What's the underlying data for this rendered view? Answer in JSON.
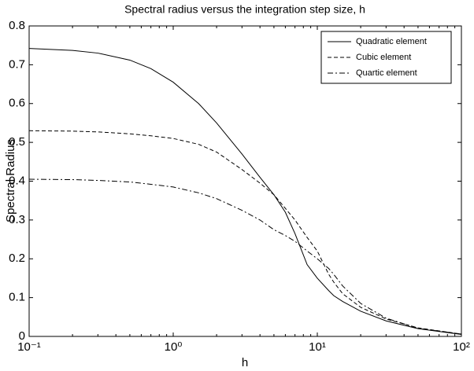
{
  "chart_data": {
    "type": "line",
    "title": "Spectral radius versus the integration step size, h",
    "x_label": "h",
    "y_label": "Spectral Radius",
    "x": [
      0.1,
      0.2,
      0.3,
      0.5,
      0.7,
      1,
      1.5,
      2,
      3,
      4,
      5,
      6,
      7,
      8.5,
      10,
      12,
      13,
      15,
      20,
      30,
      50,
      100
    ],
    "series": [
      {
        "name": "Quadratic element",
        "color": "#000000",
        "dash": "solid",
        "values": [
          0.742,
          0.737,
          0.73,
          0.712,
          0.69,
          0.655,
          0.6,
          0.55,
          0.47,
          0.41,
          0.365,
          0.32,
          0.265,
          0.185,
          0.15,
          0.118,
          0.105,
          0.09,
          0.065,
          0.04,
          0.02,
          0.005
        ]
      },
      {
        "name": "Cubic element",
        "color": "#000000",
        "dash": "dashed",
        "values": [
          0.53,
          0.529,
          0.527,
          0.522,
          0.517,
          0.51,
          0.495,
          0.475,
          0.43,
          0.395,
          0.365,
          0.33,
          0.3,
          0.255,
          0.22,
          0.16,
          0.14,
          0.11,
          0.075,
          0.045,
          0.022,
          0.006
        ]
      },
      {
        "name": "Quartic element",
        "color": "#000000",
        "dash": "dashdot",
        "values": [
          0.405,
          0.404,
          0.402,
          0.398,
          0.392,
          0.385,
          0.37,
          0.355,
          0.325,
          0.3,
          0.275,
          0.26,
          0.245,
          0.22,
          0.2,
          0.175,
          0.16,
          0.13,
          0.085,
          0.047,
          0.021,
          0.006
        ]
      }
    ],
    "xscale": "log",
    "xlim": [
      0.1,
      100
    ],
    "xticks": [
      {
        "value": 0.1,
        "label": "10⁻¹"
      },
      {
        "value": 1,
        "label": "10⁰"
      },
      {
        "value": 10,
        "label": "10¹"
      },
      {
        "value": 100,
        "label": "10²"
      }
    ],
    "ylim": [
      0,
      0.8
    ],
    "yticks": [
      0,
      0.1,
      0.2,
      0.3,
      0.4,
      0.5,
      0.6,
      0.7,
      0.8
    ],
    "grid": false,
    "legend": "upper right"
  }
}
